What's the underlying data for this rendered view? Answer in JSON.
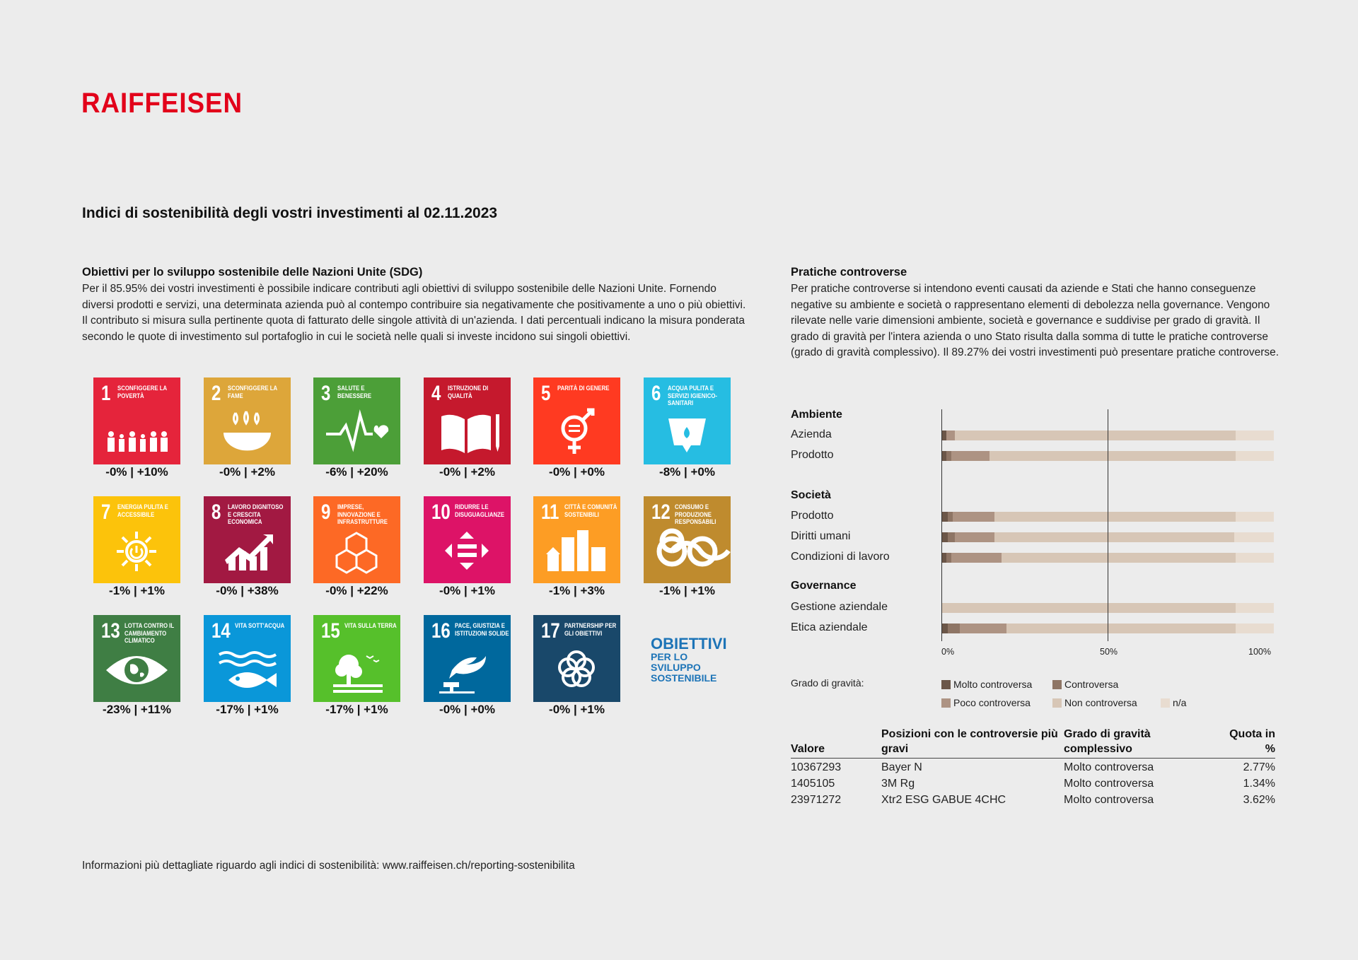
{
  "brand": "RAIFFEISEN",
  "title": "Indici di sostenibilità degli vostri investimenti al 02.11.2023",
  "sdg": {
    "title": "Obiettivi per lo sviluppo sostenibile delle Nazioni Unite (SDG)",
    "text": "Per il 85.95% dei vostri investimenti è possibile indicare contributi agli obiettivi di sviluppo sostenibile delle Nazioni Unite. Fornendo diversi prodotti e servizi, una determinata azienda può al contempo contribuire sia negativamente che positivamente a uno o più obiettivi. Il contributo si misura sulla pertinente quota di fatturato delle singole attività di un'azienda. I dati percentuali indicano la misura ponderata secondo le quote di investimento sul portafoglio in cui le società nelle quali si investe incidono sui singoli obiettivi.",
    "goals": [
      {
        "num": "1",
        "label": "Sconfiggere la povertà",
        "value": "-0% | +10%",
        "color": "#e5243b",
        "icon": "family-icon"
      },
      {
        "num": "2",
        "label": "Sconfiggere la fame",
        "value": "-0% | +2%",
        "color": "#dda63a",
        "icon": "bowl-icon"
      },
      {
        "num": "3",
        "label": "Salute e benessere",
        "value": "-6% | +20%",
        "color": "#4c9f38",
        "icon": "heartbeat-icon"
      },
      {
        "num": "4",
        "label": "Istruzione di qualità",
        "value": "-0% | +2%",
        "color": "#c5192d",
        "icon": "book-icon"
      },
      {
        "num": "5",
        "label": "Parità di genere",
        "value": "-0% | +0%",
        "color": "#ff3a21",
        "icon": "gender-icon"
      },
      {
        "num": "6",
        "label": "Acqua pulita e servizi igienico-sanitari",
        "value": "-8% | +0%",
        "color": "#26bde2",
        "icon": "water-icon"
      },
      {
        "num": "7",
        "label": "Energia pulita e accessibile",
        "value": "-1% | +1%",
        "color": "#fcc30b",
        "icon": "sun-icon"
      },
      {
        "num": "8",
        "label": "Lavoro dignitoso e crescita economica",
        "value": "-0% | +38%",
        "color": "#a21942",
        "icon": "growth-icon"
      },
      {
        "num": "9",
        "label": "Imprese, innovazione e infrastrutture",
        "value": "-0% | +22%",
        "color": "#fd6925",
        "icon": "cubes-icon"
      },
      {
        "num": "10",
        "label": "Ridurre le disuguaglianze",
        "value": "-0% | +1%",
        "color": "#dd1367",
        "icon": "equality-icon"
      },
      {
        "num": "11",
        "label": "Città e comunità sostenibili",
        "value": "-1% | +3%",
        "color": "#fd9d24",
        "icon": "city-icon"
      },
      {
        "num": "12",
        "label": "Consumo e produzione responsabili",
        "value": "-1% | +1%",
        "color": "#bf8b2e",
        "icon": "infinity-icon"
      },
      {
        "num": "13",
        "label": "Lotta contro il cambiamento climatico",
        "value": "-23% | +11%",
        "color": "#3f7e44",
        "icon": "eye-globe-icon"
      },
      {
        "num": "14",
        "label": "Vita sott'acqua",
        "value": "-17% | +1%",
        "color": "#0a97d9",
        "icon": "fish-icon"
      },
      {
        "num": "15",
        "label": "Vita sulla terra",
        "value": "-17% | +1%",
        "color": "#56c02b",
        "icon": "tree-icon"
      },
      {
        "num": "16",
        "label": "Pace, giustizia e istituzioni solide",
        "value": "-0% | +0%",
        "color": "#00689d",
        "icon": "dove-icon"
      },
      {
        "num": "17",
        "label": "Partnership per gli obiettivi",
        "value": "-0% | +1%",
        "color": "#19486a",
        "icon": "rings-icon"
      }
    ],
    "logo_line1": "OBIETTIVI",
    "logo_line2": "PER LO SVILUPPO SOSTENIBILE"
  },
  "controversie": {
    "title": "Pratiche controverse",
    "text": "Per pratiche controverse si intendono eventi causati da aziende e Stati che hanno conseguenze negative su ambiente e società o rappresentano elementi di debolezza nella governance. Vengono rilevate nelle varie dimensioni ambiente, società e governance e suddivise per grado di gravità. Il grado di gravità per l'intera azienda o uno Stato risulta dalla somma di tutte le pratiche controverse (grado di gravità complessivo). Il 89.27% dei vostri investimenti può presentare pratiche controverse."
  },
  "chart_data": {
    "type": "bar",
    "stacked": true,
    "orientation": "horizontal",
    "xlim": [
      0,
      100
    ],
    "ticks": [
      "0%",
      "50%",
      "100%"
    ],
    "legend_title": "Grado di gravità:",
    "segment_names": [
      "Molto controversa",
      "Controversa",
      "Poco controversa",
      "Non controversa",
      "n/a"
    ],
    "segment_colors": [
      "#6b5648",
      "#8e7565",
      "#ad9383",
      "#d7c6b6",
      "#e8dcd0"
    ],
    "groups": [
      {
        "name": "Ambiente",
        "rows": [
          {
            "label": "Azienda",
            "values": [
              1.5,
              0,
              2.5,
              84.5,
              11.5
            ]
          },
          {
            "label": "Prodotto",
            "values": [
              1.5,
              1.5,
              11.5,
              74.0,
              11.5
            ]
          }
        ]
      },
      {
        "name": "Società",
        "rows": [
          {
            "label": "Prodotto",
            "values": [
              2.0,
              1.5,
              12.5,
              72.5,
              11.5
            ]
          },
          {
            "label": "Diritti umani",
            "values": [
              2.0,
              2.0,
              12.0,
              72.0,
              12.0
            ]
          },
          {
            "label": "Condizioni di lavoro",
            "values": [
              1.5,
              1.5,
              15.0,
              70.5,
              11.5
            ]
          }
        ]
      },
      {
        "name": "Governance",
        "rows": [
          {
            "label": "Gestione aziendale",
            "values": [
              0,
              0,
              0,
              88.5,
              11.5
            ]
          },
          {
            "label": "Etica aziendale",
            "values": [
              2.0,
              3.5,
              14.0,
              69.0,
              11.5
            ]
          }
        ]
      }
    ]
  },
  "holdings": {
    "headers": [
      "Valore",
      "Posizioni con le controversie più gravi",
      "Grado di gravità complessivo",
      "Quota in %"
    ],
    "rows": [
      [
        "10367293",
        "Bayer N",
        "Molto controversa",
        "2.77%"
      ],
      [
        "1405105",
        "3M Rg",
        "Molto controversa",
        "1.34%"
      ],
      [
        "23971272",
        "Xtr2 ESG GABUE 4CHC",
        "Molto controversa",
        "3.62%"
      ]
    ]
  },
  "footer": "Informazioni più dettagliate riguardo agli indici di sostenibilità: www.raiffeisen.ch/reporting-sostenibilita"
}
